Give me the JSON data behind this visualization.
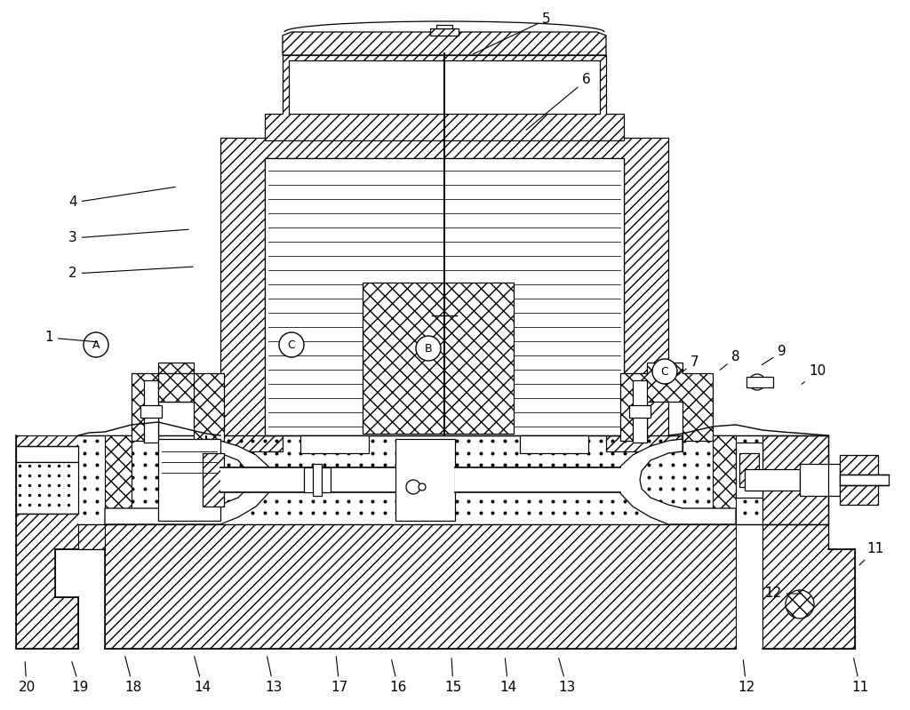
{
  "fig_width": 10.24,
  "fig_height": 7.99,
  "bg_color": "#ffffff",
  "lc": "black",
  "labels_top": [
    [
      "5",
      615,
      22,
      530,
      62
    ],
    [
      "6",
      660,
      90,
      590,
      148
    ]
  ],
  "labels_left": [
    [
      "4",
      82,
      228,
      200,
      210
    ],
    [
      "3",
      82,
      268,
      215,
      258
    ],
    [
      "2",
      82,
      308,
      220,
      300
    ],
    [
      "1",
      55,
      380,
      112,
      385
    ]
  ],
  "labels_right": [
    [
      "7",
      782,
      408,
      760,
      424
    ],
    [
      "8",
      828,
      402,
      808,
      418
    ],
    [
      "9",
      880,
      396,
      855,
      412
    ],
    [
      "10",
      920,
      418,
      900,
      434
    ],
    [
      "11",
      985,
      618,
      965,
      638
    ],
    [
      "12",
      870,
      668,
      905,
      668
    ]
  ],
  "labels_bottom": [
    [
      "20",
      30,
      774,
      28,
      742
    ],
    [
      "19",
      90,
      774,
      80,
      742
    ],
    [
      "18",
      150,
      774,
      140,
      736
    ],
    [
      "14",
      228,
      774,
      218,
      736
    ],
    [
      "13",
      308,
      774,
      300,
      736
    ],
    [
      "17",
      382,
      774,
      378,
      736
    ],
    [
      "16",
      448,
      774,
      440,
      740
    ],
    [
      "15",
      510,
      774,
      508,
      738
    ],
    [
      "14",
      572,
      774,
      568,
      738
    ],
    [
      "13",
      638,
      774,
      628,
      738
    ],
    [
      "12",
      840,
      774,
      836,
      740
    ],
    [
      "11",
      968,
      774,
      960,
      738
    ]
  ],
  "circles": [
    [
      "A",
      108,
      388
    ],
    [
      "B",
      482,
      392
    ],
    [
      "C",
      328,
      388
    ],
    [
      "C",
      748,
      418
    ]
  ]
}
